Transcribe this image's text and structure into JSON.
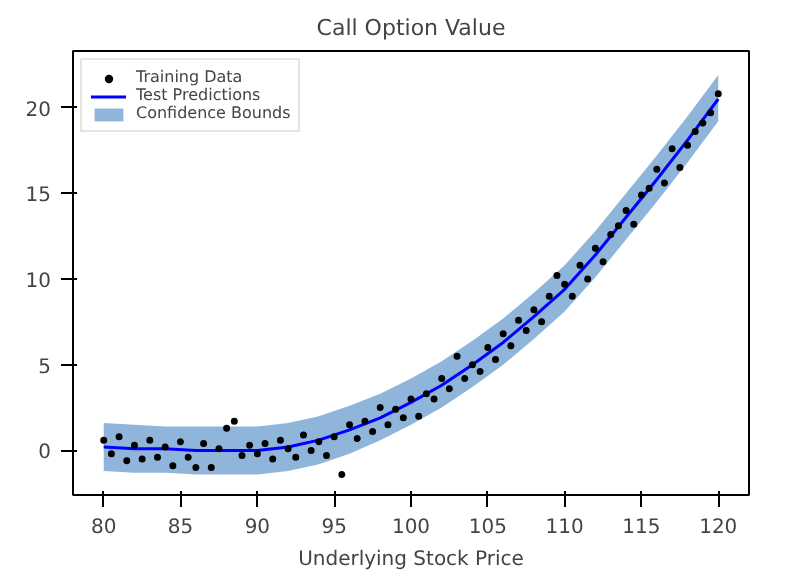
{
  "chart_data": {
    "type": "scatter",
    "title": "Call Option Value",
    "xlabel": "Underlying Stock Price",
    "xlim": [
      78,
      122
    ],
    "ylim": [
      -2.6,
      23.3
    ],
    "xticks": [
      80,
      85,
      90,
      95,
      100,
      105,
      110,
      115,
      120
    ],
    "yticks": [
      0,
      5,
      10,
      15,
      20
    ],
    "grid": false,
    "legend": "top left",
    "series": [
      {
        "name": "Confidence Bounds",
        "type": "area",
        "color": "#8fb5db"
      },
      {
        "name": "Test Predictions",
        "type": "line",
        "color": "#0000ff",
        "marker": "none",
        "line_style": "solid",
        "x": [
          80,
          82,
          84,
          86,
          88,
          90,
          92,
          94,
          96,
          98,
          100,
          102,
          104,
          106,
          108,
          110,
          112,
          114,
          116,
          118,
          120
        ],
        "values": [
          0.2,
          0.1,
          0.1,
          0.0,
          0.0,
          0.0,
          0.2,
          0.6,
          1.2,
          1.9,
          2.8,
          3.8,
          5.0,
          6.3,
          7.8,
          9.4,
          11.4,
          13.6,
          15.8,
          18.1,
          20.5
        ],
        "lower": [
          -1.2,
          -1.3,
          -1.3,
          -1.4,
          -1.4,
          -1.4,
          -1.2,
          -0.8,
          -0.2,
          0.6,
          1.5,
          2.5,
          3.7,
          5.0,
          6.5,
          8.1,
          10.1,
          12.3,
          14.5,
          16.8,
          19.2
        ],
        "upper": [
          1.6,
          1.5,
          1.4,
          1.4,
          1.4,
          1.4,
          1.6,
          2.0,
          2.6,
          3.3,
          4.2,
          5.2,
          6.4,
          7.7,
          9.2,
          10.8,
          12.8,
          15.0,
          17.2,
          19.5,
          21.9
        ]
      },
      {
        "name": "Training Data",
        "color": "#000000",
        "marker": "circle",
        "x": [
          80,
          80.5,
          81,
          81.5,
          82,
          82.5,
          83,
          83.5,
          84,
          84.5,
          85,
          85.5,
          86,
          86.5,
          87,
          87.5,
          88,
          88.5,
          89,
          89.5,
          90,
          90.5,
          91,
          91.5,
          92,
          92.5,
          93,
          93.5,
          94,
          94.5,
          95,
          95.5,
          96,
          96.5,
          97,
          97.5,
          98,
          98.5,
          99,
          99.5,
          100,
          100.5,
          101,
          101.5,
          102,
          102.5,
          103,
          103.5,
          104,
          104.5,
          105,
          105.5,
          106,
          106.5,
          107,
          107.5,
          108,
          108.5,
          109,
          109.5,
          110,
          110.5,
          111,
          111.5,
          112,
          112.5,
          113,
          113.5,
          114,
          114.5,
          115,
          115.5,
          116,
          116.5,
          117,
          117.5,
          118,
          118.5,
          119,
          119.5,
          120
        ],
        "values": [
          0.6,
          -0.2,
          0.8,
          -0.6,
          0.3,
          -0.5,
          0.6,
          -0.4,
          0.2,
          -0.9,
          0.5,
          -0.4,
          -1.0,
          0.4,
          -1.0,
          0.1,
          1.3,
          1.7,
          -0.3,
          0.3,
          -0.2,
          0.4,
          -0.5,
          0.6,
          0.1,
          -0.4,
          0.9,
          0.0,
          0.5,
          -0.3,
          0.8,
          -1.4,
          1.5,
          0.7,
          1.7,
          1.1,
          2.5,
          1.5,
          2.4,
          1.9,
          3.0,
          2.0,
          3.3,
          3.0,
          4.2,
          3.6,
          5.5,
          4.2,
          5.0,
          4.6,
          6.0,
          5.3,
          6.8,
          6.1,
          7.6,
          7.0,
          8.2,
          7.5,
          9.0,
          10.2,
          9.7,
          9.0,
          10.8,
          10.0,
          11.8,
          11.0,
          12.6,
          13.1,
          14.0,
          13.2,
          14.9,
          15.3,
          16.4,
          15.6,
          17.6,
          16.5,
          17.8,
          18.6,
          19.1,
          19.7,
          20.8
        ]
      }
    ]
  }
}
